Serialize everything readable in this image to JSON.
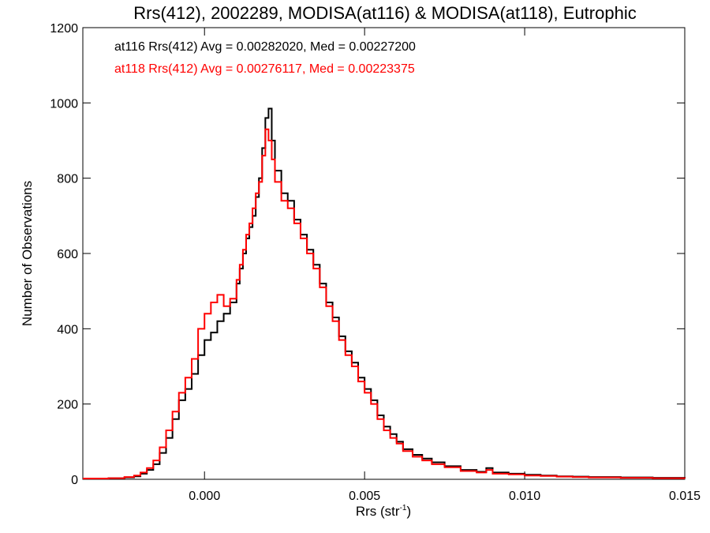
{
  "chart_data": {
    "type": "line",
    "title": "Rrs(412), 2002289, MODISA(at116) & MODISA(at118), Eutrophic",
    "xlabel_main": "Rrs (str",
    "xlabel_sup": "-1",
    "xlabel_close": ")",
    "ylabel": "Number of Observations",
    "xlim": [
      -0.0038,
      0.015
    ],
    "ylim": [
      0,
      1200
    ],
    "x_ticks": [
      0.0,
      0.005,
      0.01,
      0.015
    ],
    "x_tick_labels": [
      "0.000",
      "0.005",
      "0.010",
      "0.015"
    ],
    "y_ticks": [
      0,
      200,
      400,
      600,
      800,
      1000,
      1200
    ],
    "y_tick_labels": [
      "0",
      "200",
      "400",
      "600",
      "800",
      "1000",
      "1200"
    ],
    "grid": false,
    "legend_position": "top-left",
    "series": [
      {
        "name": "at116",
        "legend_text": "at116 Rrs(412) Avg = 0.00282020, Med = 0.00227200",
        "color": "#000000",
        "x": [
          -0.0038,
          -0.003,
          -0.0025,
          -0.0022,
          -0.002,
          -0.0018,
          -0.0016,
          -0.0014,
          -0.0012,
          -0.001,
          -0.0008,
          -0.0006,
          -0.0004,
          -0.0002,
          0.0,
          0.0002,
          0.0004,
          0.0006,
          0.0008,
          0.001,
          0.0011,
          0.0012,
          0.0013,
          0.0014,
          0.0015,
          0.0016,
          0.0017,
          0.0018,
          0.0019,
          0.002,
          0.0021,
          0.0022,
          0.0024,
          0.0026,
          0.0028,
          0.003,
          0.0032,
          0.0034,
          0.0036,
          0.0038,
          0.004,
          0.0042,
          0.0044,
          0.0046,
          0.0048,
          0.005,
          0.0052,
          0.0054,
          0.0056,
          0.0058,
          0.006,
          0.0062,
          0.0065,
          0.0068,
          0.0071,
          0.0075,
          0.008,
          0.0085,
          0.0088,
          0.009,
          0.0095,
          0.01,
          0.0105,
          0.011,
          0.0115,
          0.012,
          0.013,
          0.014,
          0.015
        ],
        "y": [
          2,
          3,
          5,
          8,
          15,
          25,
          40,
          70,
          110,
          160,
          210,
          240,
          280,
          330,
          370,
          390,
          420,
          440,
          470,
          520,
          560,
          600,
          640,
          670,
          700,
          750,
          800,
          880,
          960,
          985,
          900,
          820,
          760,
          740,
          690,
          650,
          610,
          570,
          520,
          470,
          430,
          380,
          340,
          310,
          270,
          240,
          210,
          170,
          140,
          120,
          100,
          80,
          65,
          55,
          45,
          35,
          25,
          20,
          30,
          18,
          15,
          12,
          10,
          8,
          7,
          6,
          5,
          4,
          3
        ]
      },
      {
        "name": "at118",
        "legend_text": "at118 Rrs(412) Avg = 0.00276117, Med = 0.00223375",
        "color": "#ff0000",
        "x": [
          -0.0038,
          -0.003,
          -0.0025,
          -0.0022,
          -0.002,
          -0.0018,
          -0.0016,
          -0.0014,
          -0.0012,
          -0.001,
          -0.0008,
          -0.0006,
          -0.0004,
          -0.0002,
          0.0,
          0.0002,
          0.0004,
          0.0006,
          0.0008,
          0.001,
          0.0011,
          0.0012,
          0.0013,
          0.0014,
          0.0015,
          0.0016,
          0.0017,
          0.0018,
          0.0019,
          0.002,
          0.0021,
          0.0022,
          0.0024,
          0.0026,
          0.0028,
          0.003,
          0.0032,
          0.0034,
          0.0036,
          0.0038,
          0.004,
          0.0042,
          0.0044,
          0.0046,
          0.0048,
          0.005,
          0.0052,
          0.0054,
          0.0056,
          0.0058,
          0.006,
          0.0062,
          0.0065,
          0.0068,
          0.0071,
          0.0075,
          0.008,
          0.0085,
          0.0088,
          0.009,
          0.0095,
          0.01,
          0.0105,
          0.011,
          0.0115,
          0.012,
          0.013,
          0.014,
          0.015
        ],
        "y": [
          2,
          3,
          6,
          10,
          18,
          30,
          50,
          85,
          130,
          180,
          230,
          270,
          320,
          400,
          440,
          470,
          490,
          460,
          480,
          530,
          570,
          610,
          650,
          680,
          720,
          760,
          790,
          860,
          930,
          900,
          850,
          790,
          740,
          720,
          680,
          640,
          600,
          560,
          510,
          460,
          420,
          370,
          330,
          300,
          260,
          230,
          200,
          160,
          130,
          110,
          95,
          75,
          60,
          50,
          40,
          32,
          22,
          18,
          25,
          15,
          13,
          10,
          9,
          7,
          6,
          5,
          4,
          3,
          2
        ]
      }
    ]
  }
}
